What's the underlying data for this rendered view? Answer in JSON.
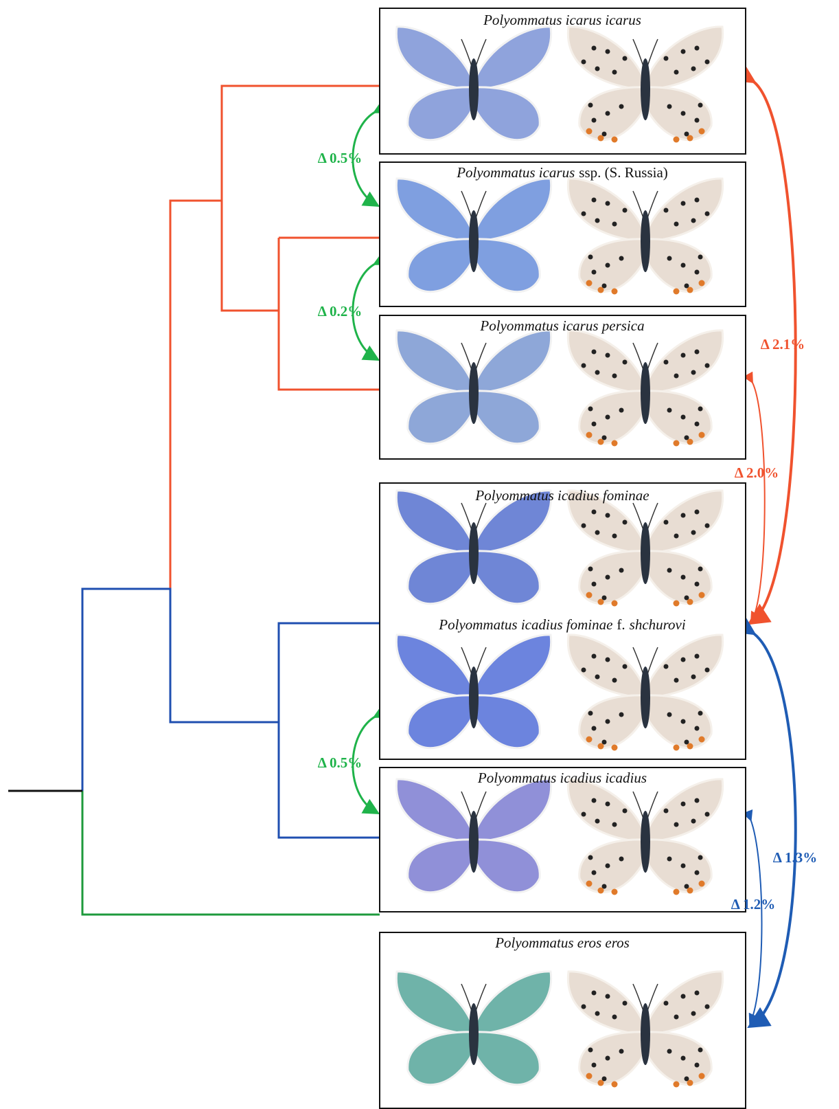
{
  "nodes": [
    {
      "label": [
        {
          "text": "Polyommatus icarus icarus",
          "italic": true
        }
      ]
    },
    {
      "label": [
        {
          "text": "Polyommatus icarus",
          "italic": true
        },
        {
          "text": "ssp. (S. Russia)",
          "italic": false
        }
      ]
    },
    {
      "label": [
        {
          "text": "Polyommatus icarus persica",
          "italic": true
        }
      ]
    },
    {
      "label": [
        {
          "text": "Polyommatus icadius fominae",
          "italic": true
        }
      ]
    },
    {
      "label": [
        {
          "text": "Polyommatus icadius fominae",
          "italic": true
        },
        {
          "text": "f.",
          "italic": false
        },
        {
          "text": "shchurovi",
          "italic": true
        }
      ]
    },
    {
      "label": [
        {
          "text": "Polyommatus icadius icadius",
          "italic": true
        }
      ]
    },
    {
      "label": [
        {
          "text": "Polyommatus eros eros",
          "italic": true
        }
      ]
    }
  ],
  "distances": [
    {
      "label": "Δ 0.5%"
    },
    {
      "label": "Δ 0.2%"
    },
    {
      "label": "Δ 0.5%"
    },
    {
      "label": "Δ 2.1%"
    },
    {
      "label": "Δ 2.0%"
    },
    {
      "label": "Δ 1.3%"
    },
    {
      "label": "Δ 1.2%"
    }
  ]
}
